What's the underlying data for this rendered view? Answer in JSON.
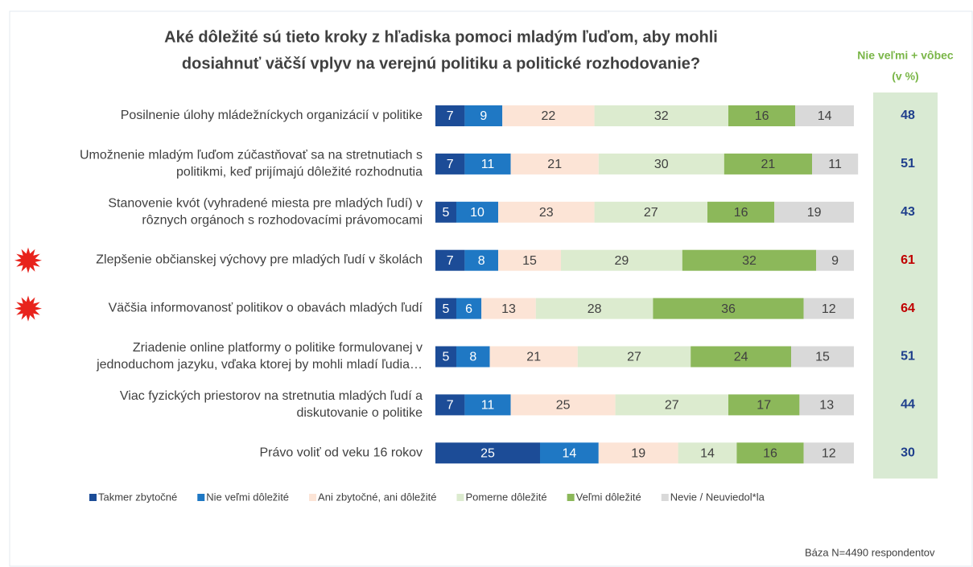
{
  "chart_data": {
    "type": "stacked_bar_horizontal",
    "title_lines": [
      "Aké dôležité sú tieto kroky z hľadiska pomoci mladým ľuďom, aby mohli",
      "dosiahnuť väčší vplyv na verejnú politiku a politické rozhodovanie?"
    ],
    "categories": [
      "Posilnenie úlohy mládežníckych organizácií v politike",
      "Umožnenie mladým ľuďom zúčastňovať sa na stretnutiach s\npolitikmi, keď prijímajú dôležité rozhodnutia",
      "Stanovenie kvót (vyhradené miesta pre mladých ľudí) v\nrôznych orgánoch s rozhodovacími právomocami",
      "Zlepšenie občianskej výchovy pre mladých ľudí v školách",
      "Väčšia informovanosť politikov o obavách mladých ľudí",
      "Zriadenie online platformy o politike formulovanej v\njednoduchom jazyku, vďaka ktorej by mohli mladí ľudia…",
      "Viac fyzických priestorov na stretnutia mladých ľudí a\ndiskutovanie o politike",
      "Právo voliť od veku 16 rokov"
    ],
    "series": [
      {
        "name": "Takmer zbytočné",
        "color": "#1c4c97",
        "values": [
          7,
          7,
          5,
          7,
          5,
          5,
          7,
          25
        ]
      },
      {
        "name": "Nie veľmi dôležité",
        "color": "#1f78c4",
        "values": [
          9,
          11,
          10,
          8,
          6,
          8,
          11,
          14
        ]
      },
      {
        "name": "Ani zbytočné, ani dôležité",
        "color": "#fce4d6",
        "values": [
          22,
          21,
          23,
          15,
          13,
          21,
          25,
          19
        ]
      },
      {
        "name": "Pomerne dôležité",
        "color": "#dcebcf",
        "values": [
          32,
          30,
          27,
          29,
          28,
          27,
          27,
          14
        ]
      },
      {
        "name": "Veľmi dôležité",
        "color": "#8cb85a",
        "values": [
          16,
          21,
          16,
          32,
          36,
          24,
          17,
          16
        ]
      },
      {
        "name": "Nevie / Neuviedol*la",
        "color": "#d9d9d9",
        "values": [
          14,
          11,
          19,
          9,
          12,
          15,
          13,
          12
        ]
      }
    ],
    "xlim": [
      0,
      100
    ],
    "side_column": {
      "title_lines": [
        "Nie veľmi + vôbec",
        "(v %)"
      ],
      "values": [
        48,
        51,
        43,
        61,
        64,
        51,
        44,
        30
      ],
      "highlight": [
        false,
        false,
        false,
        true,
        true,
        false,
        false,
        false
      ],
      "color": "#1f3f8c",
      "highlight_color": "#c00000",
      "background": "#d9ead3",
      "title_color": "#7ab648"
    },
    "footnote": "Báza N=4490 respondentov"
  }
}
